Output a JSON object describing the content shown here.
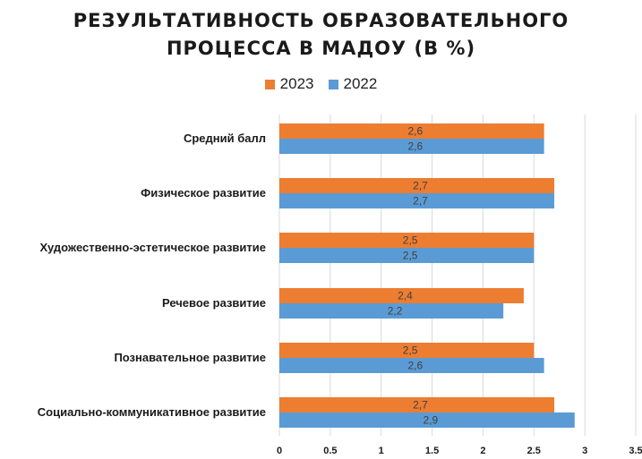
{
  "chart_data": {
    "type": "bar",
    "orientation": "horizontal",
    "title_lines": [
      "РЕЗУЛЬТАТИВНОСТЬ ОБРАЗОВАТЕЛЬНОГО",
      "ПРОЦЕССА В МАДОУ (В %)"
    ],
    "categories": [
      "Средний балл",
      "Физическое развитие",
      "Художественно-эстетическое развитие",
      "Речевое развитие",
      "Познавательное развитие",
      "Социально-коммуникативное развитие"
    ],
    "series": [
      {
        "name": "2023",
        "color": "#ED7D31",
        "values": [
          2.6,
          2.7,
          2.5,
          2.4,
          2.5,
          2.7
        ],
        "labels": [
          "2,6",
          "2,7",
          "2,5",
          "2,4",
          "2,5",
          "2,7"
        ]
      },
      {
        "name": "2022",
        "color": "#5B9BD5",
        "values": [
          2.6,
          2.7,
          2.5,
          2.2,
          2.6,
          2.9
        ],
        "labels": [
          "2,6",
          "2,7",
          "2,5",
          "2,2",
          "2,6",
          "2,9"
        ]
      }
    ],
    "x_ticks": [
      "0",
      "0.5",
      "1",
      "1.5",
      "2",
      "2.5",
      "3",
      "3.5"
    ],
    "xlim": [
      0,
      3.5
    ],
    "grid": true,
    "legend_position": "top"
  }
}
